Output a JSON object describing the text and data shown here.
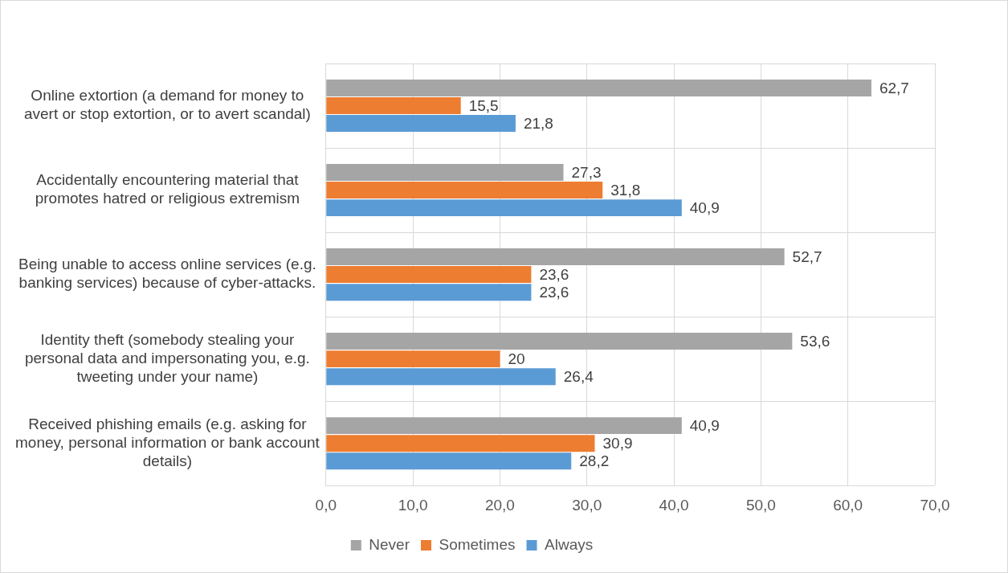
{
  "chart_data": {
    "type": "bar",
    "orientation": "horizontal",
    "categories": [
      "Online extortion (a demand for money to avert or stop extortion, or to avert scandal)",
      "Accidentally encountering material that promotes hatred or religious extremism",
      "Being unable to access online services (e.g. banking services) because of cyber-attacks.",
      "Identity theft (somebody stealing your personal data and impersonating you, e.g. tweeting under your name)",
      "Received phishing emails (e.g. asking for money, personal information or bank account details)"
    ],
    "series": [
      {
        "name": "Never",
        "color": "#a5a5a5",
        "values": [
          62.7,
          27.3,
          52.7,
          53.6,
          40.9
        ],
        "value_labels": [
          "62,7",
          "27,3",
          "52,7",
          "53,6",
          "40,9"
        ]
      },
      {
        "name": "Sometimes",
        "color": "#ed7d31",
        "values": [
          15.5,
          31.8,
          23.6,
          20,
          30.9
        ],
        "value_labels": [
          "15,5",
          "31,8",
          "23,6",
          "20",
          "30,9"
        ]
      },
      {
        "name": "Always",
        "color": "#5b9bd5",
        "values": [
          21.8,
          40.9,
          23.6,
          26.4,
          28.2
        ],
        "value_labels": [
          "21,8",
          "40,9",
          "23,6",
          "26,4",
          "28,2"
        ]
      }
    ],
    "xlim": [
      0,
      70
    ],
    "xticks": [
      {
        "value": 0,
        "label": "0,0"
      },
      {
        "value": 10,
        "label": "10,0"
      },
      {
        "value": 20,
        "label": "20,0"
      },
      {
        "value": 30,
        "label": "30,0"
      },
      {
        "value": 40,
        "label": "40,0"
      },
      {
        "value": 50,
        "label": "50,0"
      },
      {
        "value": 60,
        "label": "60,0"
      },
      {
        "value": 70,
        "label": "70,0"
      }
    ],
    "grid": true,
    "legend": "bottom"
  }
}
